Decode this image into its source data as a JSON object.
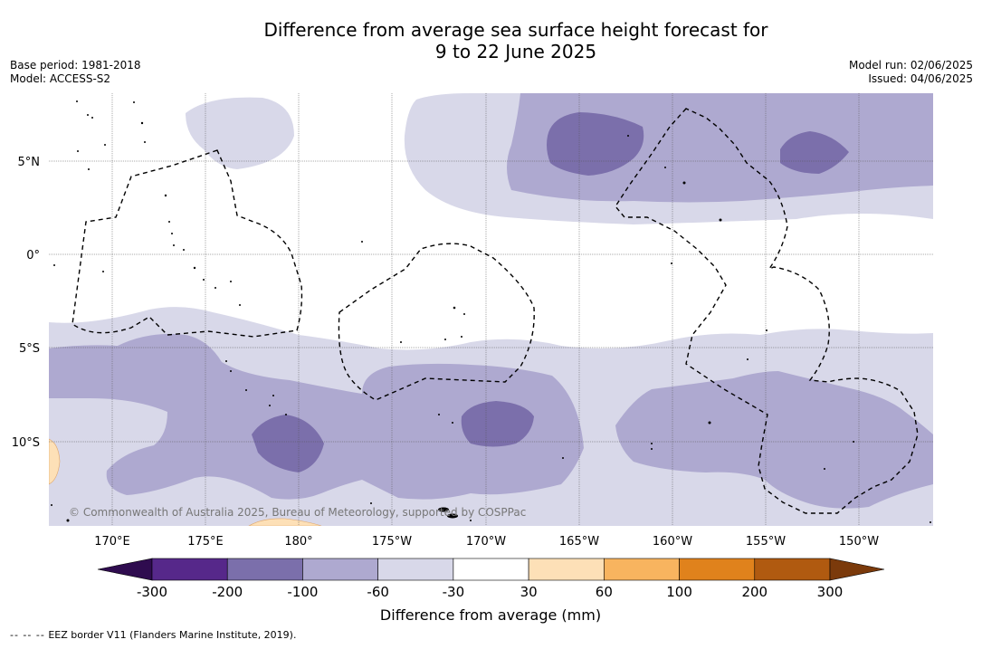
{
  "title": {
    "line1": "Difference from average sea surface height forecast for",
    "line2": "9 to 22 June 2025"
  },
  "info_left": {
    "base_period": "Base period: 1981-2018",
    "model": "Model: ACCESS-S2"
  },
  "info_right": {
    "model_run": "Model run: 02/06/2025",
    "issued": "Issued: 04/06/2025"
  },
  "map": {
    "lat_labels": [
      "5°N",
      "0°",
      "5°S",
      "10°S"
    ],
    "lon_labels": [
      "170°E",
      "175°E",
      "180°",
      "175°W",
      "170°W",
      "165°W",
      "160°W",
      "155°W",
      "150°W"
    ],
    "copyright": "© Commonwealth of Australia 2025, Bureau of Meteorology, supported by COSPPac"
  },
  "colorbar": {
    "ticks": [
      "-300",
      "-200",
      "-100",
      "-60",
      "-30",
      "30",
      "60",
      "100",
      "200",
      "300"
    ],
    "colors": [
      "#2f0c4f",
      "#56288a",
      "#7b6fab",
      "#aea9d0",
      "#d8d8e9",
      "#ffffff",
      "#fde0b7",
      "#f8b45f",
      "#e0821c",
      "#b05a10",
      "#7b3a0b"
    ],
    "label": "Difference from average (mm)"
  },
  "footnote": {
    "dash": "-- -- --",
    "text": "EEZ border V11 (Flanders Marine Institute, 2019)."
  }
}
